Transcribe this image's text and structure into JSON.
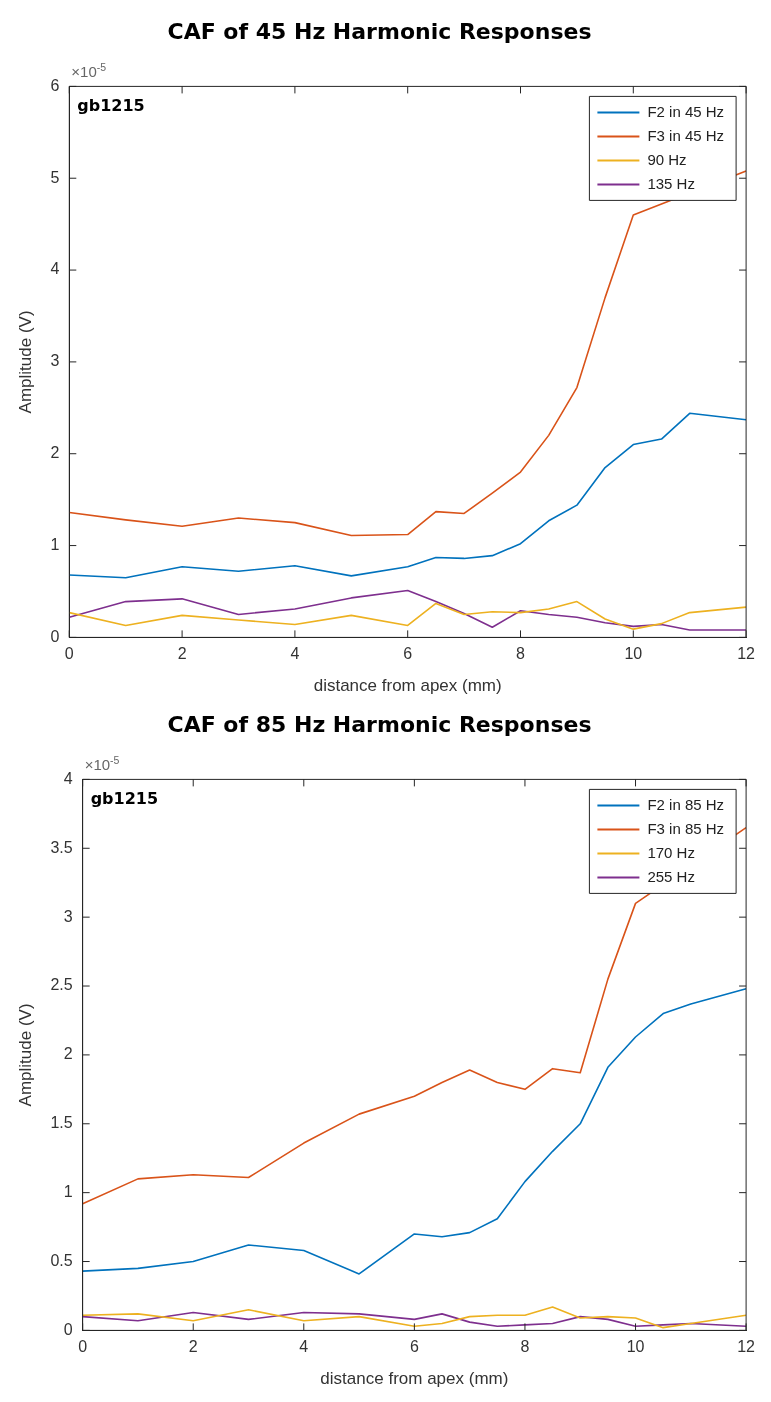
{
  "chart_data": [
    {
      "type": "line",
      "title": "CAF of 45 Hz Harmonic Responses",
      "xlabel": "distance from apex (mm)",
      "ylabel": "Amplitude (V)",
      "annotations": [
        "×10$^{-5}$",
        "gb1215"
      ],
      "x": [
        0,
        1,
        2,
        3,
        4,
        5,
        6,
        6.5,
        7,
        7.5,
        8,
        8.5,
        9,
        9.5,
        10,
        10.5,
        11,
        12
      ],
      "xlim": [
        0,
        12
      ],
      "xticks": [
        0,
        2,
        4,
        6,
        8,
        10,
        12
      ],
      "ylim": [
        0,
        6
      ],
      "yticks": [
        0,
        1,
        2,
        3,
        4,
        5,
        6
      ],
      "grid": false,
      "legend": "top right",
      "marker": "none",
      "line_style": "solid",
      "series": [
        {
          "name": "F2 in 45 Hz",
          "color": "#0072bd",
          "values": [
            0.68,
            0.65,
            0.77,
            0.72,
            0.78,
            0.67,
            0.77,
            0.87,
            0.86,
            0.89,
            1.02,
            1.27,
            1.44,
            1.85,
            2.1,
            2.16,
            2.44,
            2.37
          ]
        },
        {
          "name": "F3 in 45 Hz",
          "color": "#d95319",
          "values": [
            1.36,
            1.28,
            1.21,
            1.3,
            1.25,
            1.11,
            1.12,
            1.37,
            1.35,
            1.57,
            1.8,
            2.2,
            2.72,
            3.7,
            4.6,
            null,
            null,
            5.08
          ]
        },
        {
          "name": "90 Hz",
          "color": "#edb120",
          "values": [
            0.27,
            0.13,
            0.24,
            0.19,
            0.14,
            0.24,
            0.13,
            0.37,
            0.25,
            0.28,
            0.27,
            0.31,
            0.39,
            0.2,
            0.09,
            0.15,
            0.27,
            0.33
          ]
        },
        {
          "name": "135 Hz",
          "color": "#7e2f8e",
          "values": [
            0.22,
            0.39,
            0.42,
            0.25,
            0.31,
            0.43,
            0.51,
            0.39,
            0.26,
            0.11,
            0.29,
            0.25,
            0.22,
            0.16,
            0.12,
            0.14,
            0.08,
            0.08
          ]
        }
      ]
    },
    {
      "type": "line",
      "title": "CAF of 85 Hz Harmonic Responses",
      "xlabel": "distance from apex (mm)",
      "ylabel": "Amplitude (V)",
      "annotations": [
        "×10$^{-5}$",
        "gb1215"
      ],
      "x": [
        0,
        1,
        2,
        3,
        4,
        5,
        6,
        6.5,
        7,
        7.5,
        8,
        8.5,
        9,
        9.5,
        10,
        10.5,
        11,
        12
      ],
      "xlim": [
        0,
        12
      ],
      "xticks": [
        0,
        2,
        4,
        6,
        8,
        10,
        12
      ],
      "ylim": [
        0,
        4
      ],
      "yticks": [
        0,
        0.5,
        1,
        1.5,
        2,
        2.5,
        3,
        3.5,
        4
      ],
      "grid": false,
      "legend": "top right",
      "marker": "none",
      "line_style": "solid",
      "series": [
        {
          "name": "F2 in 85 Hz",
          "color": "#0072bd",
          "values": [
            0.43,
            0.45,
            0.5,
            0.62,
            0.58,
            0.41,
            0.7,
            0.68,
            0.71,
            0.81,
            1.08,
            1.3,
            1.5,
            1.91,
            2.13,
            2.3,
            2.37,
            2.48
          ]
        },
        {
          "name": "F3 in 85 Hz",
          "color": "#d95319",
          "values": [
            0.92,
            1.1,
            1.13,
            1.11,
            1.36,
            1.57,
            1.7,
            1.8,
            1.89,
            1.8,
            1.75,
            1.9,
            1.87,
            2.55,
            3.1,
            null,
            null,
            3.65
          ]
        },
        {
          "name": "170 Hz",
          "color": "#edb120",
          "values": [
            0.11,
            0.12,
            0.07,
            0.15,
            0.07,
            0.1,
            0.03,
            0.05,
            0.1,
            0.11,
            0.11,
            0.17,
            0.09,
            0.1,
            0.09,
            0.02,
            0.05,
            0.11
          ]
        },
        {
          "name": "255 Hz",
          "color": "#7e2f8e",
          "values": [
            0.1,
            0.07,
            0.13,
            0.08,
            0.13,
            0.12,
            0.08,
            0.12,
            0.06,
            0.03,
            0.04,
            0.05,
            0.1,
            0.08,
            0.03,
            0.04,
            0.05,
            0.03
          ]
        }
      ]
    }
  ]
}
